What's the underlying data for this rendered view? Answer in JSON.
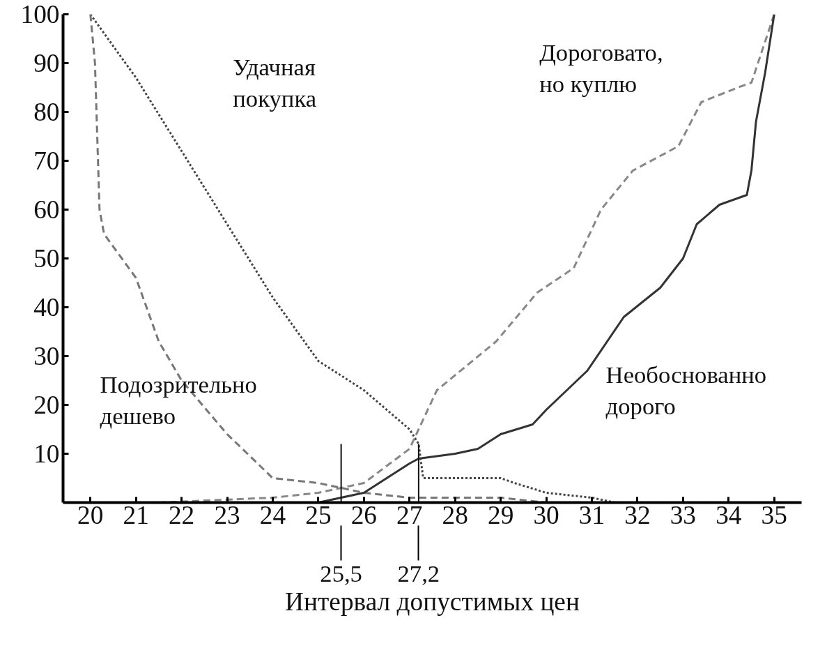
{
  "chart_data": {
    "type": "line",
    "xlabel": "Интервал допустимых цен",
    "xlim": [
      19.4,
      35.6
    ],
    "ylim": [
      0,
      100
    ],
    "xticks": [
      20,
      21,
      22,
      23,
      24,
      25,
      26,
      27,
      28,
      29,
      30,
      31,
      32,
      33,
      34,
      35
    ],
    "yticks": [
      10,
      20,
      30,
      40,
      50,
      60,
      70,
      80,
      90,
      100
    ],
    "grid": false,
    "series": [
      {
        "name": "Удачная\nпокупка",
        "color": "#444444",
        "line_style": "dotted",
        "x": [
          20,
          21,
          22,
          23,
          24,
          25,
          26,
          27,
          27.2,
          27.3,
          28,
          29,
          29.3,
          30,
          31,
          31.5,
          32
        ],
        "values": [
          100,
          87,
          72,
          57,
          42,
          29,
          23,
          15,
          12,
          5,
          5,
          5,
          4,
          2,
          1,
          0,
          0
        ]
      },
      {
        "name": "Подозрительно\nдешево",
        "color": "#777777",
        "line_style": "dashed",
        "x": [
          20,
          20.1,
          20.2,
          20.3,
          21,
          21.5,
          22,
          23,
          24,
          25,
          25.5,
          26,
          27,
          28,
          29,
          30,
          31
        ],
        "values": [
          100,
          90,
          60,
          55,
          46,
          33,
          25,
          14,
          5,
          4,
          3,
          2,
          1,
          1,
          1,
          0,
          0
        ]
      },
      {
        "name": "Дороговато,\nно куплю",
        "color": "#888888",
        "line_style": "dashed",
        "x": [
          21.5,
          24,
          25,
          25.5,
          26,
          27,
          27.6,
          28.9,
          29.8,
          30.6,
          31.2,
          31.9,
          32.9,
          33.4,
          34.2,
          34.5,
          35
        ],
        "values": [
          0,
          1,
          2,
          3,
          4,
          11,
          23,
          33,
          43,
          48,
          60,
          68,
          73,
          82,
          85,
          86,
          100
        ]
      },
      {
        "name": "Необоснованно\nдорого",
        "color": "#333333",
        "line_style": "solid",
        "x": [
          25,
          26,
          27,
          27.2,
          28,
          28.5,
          29,
          29.7,
          30,
          30.9,
          31.7,
          32.5,
          33,
          33.3,
          33.8,
          34.4,
          34.5,
          34.6,
          34.8,
          35
        ],
        "values": [
          0,
          2,
          8,
          9,
          10,
          11,
          14,
          16,
          19,
          27,
          38,
          44,
          50,
          57,
          61,
          63,
          68,
          78,
          88,
          100
        ]
      }
    ],
    "ref_lines": [
      {
        "axis": "x",
        "value": 25.5,
        "label": "25,5"
      },
      {
        "axis": "x",
        "value": 27.2,
        "label": "27,2"
      }
    ]
  }
}
